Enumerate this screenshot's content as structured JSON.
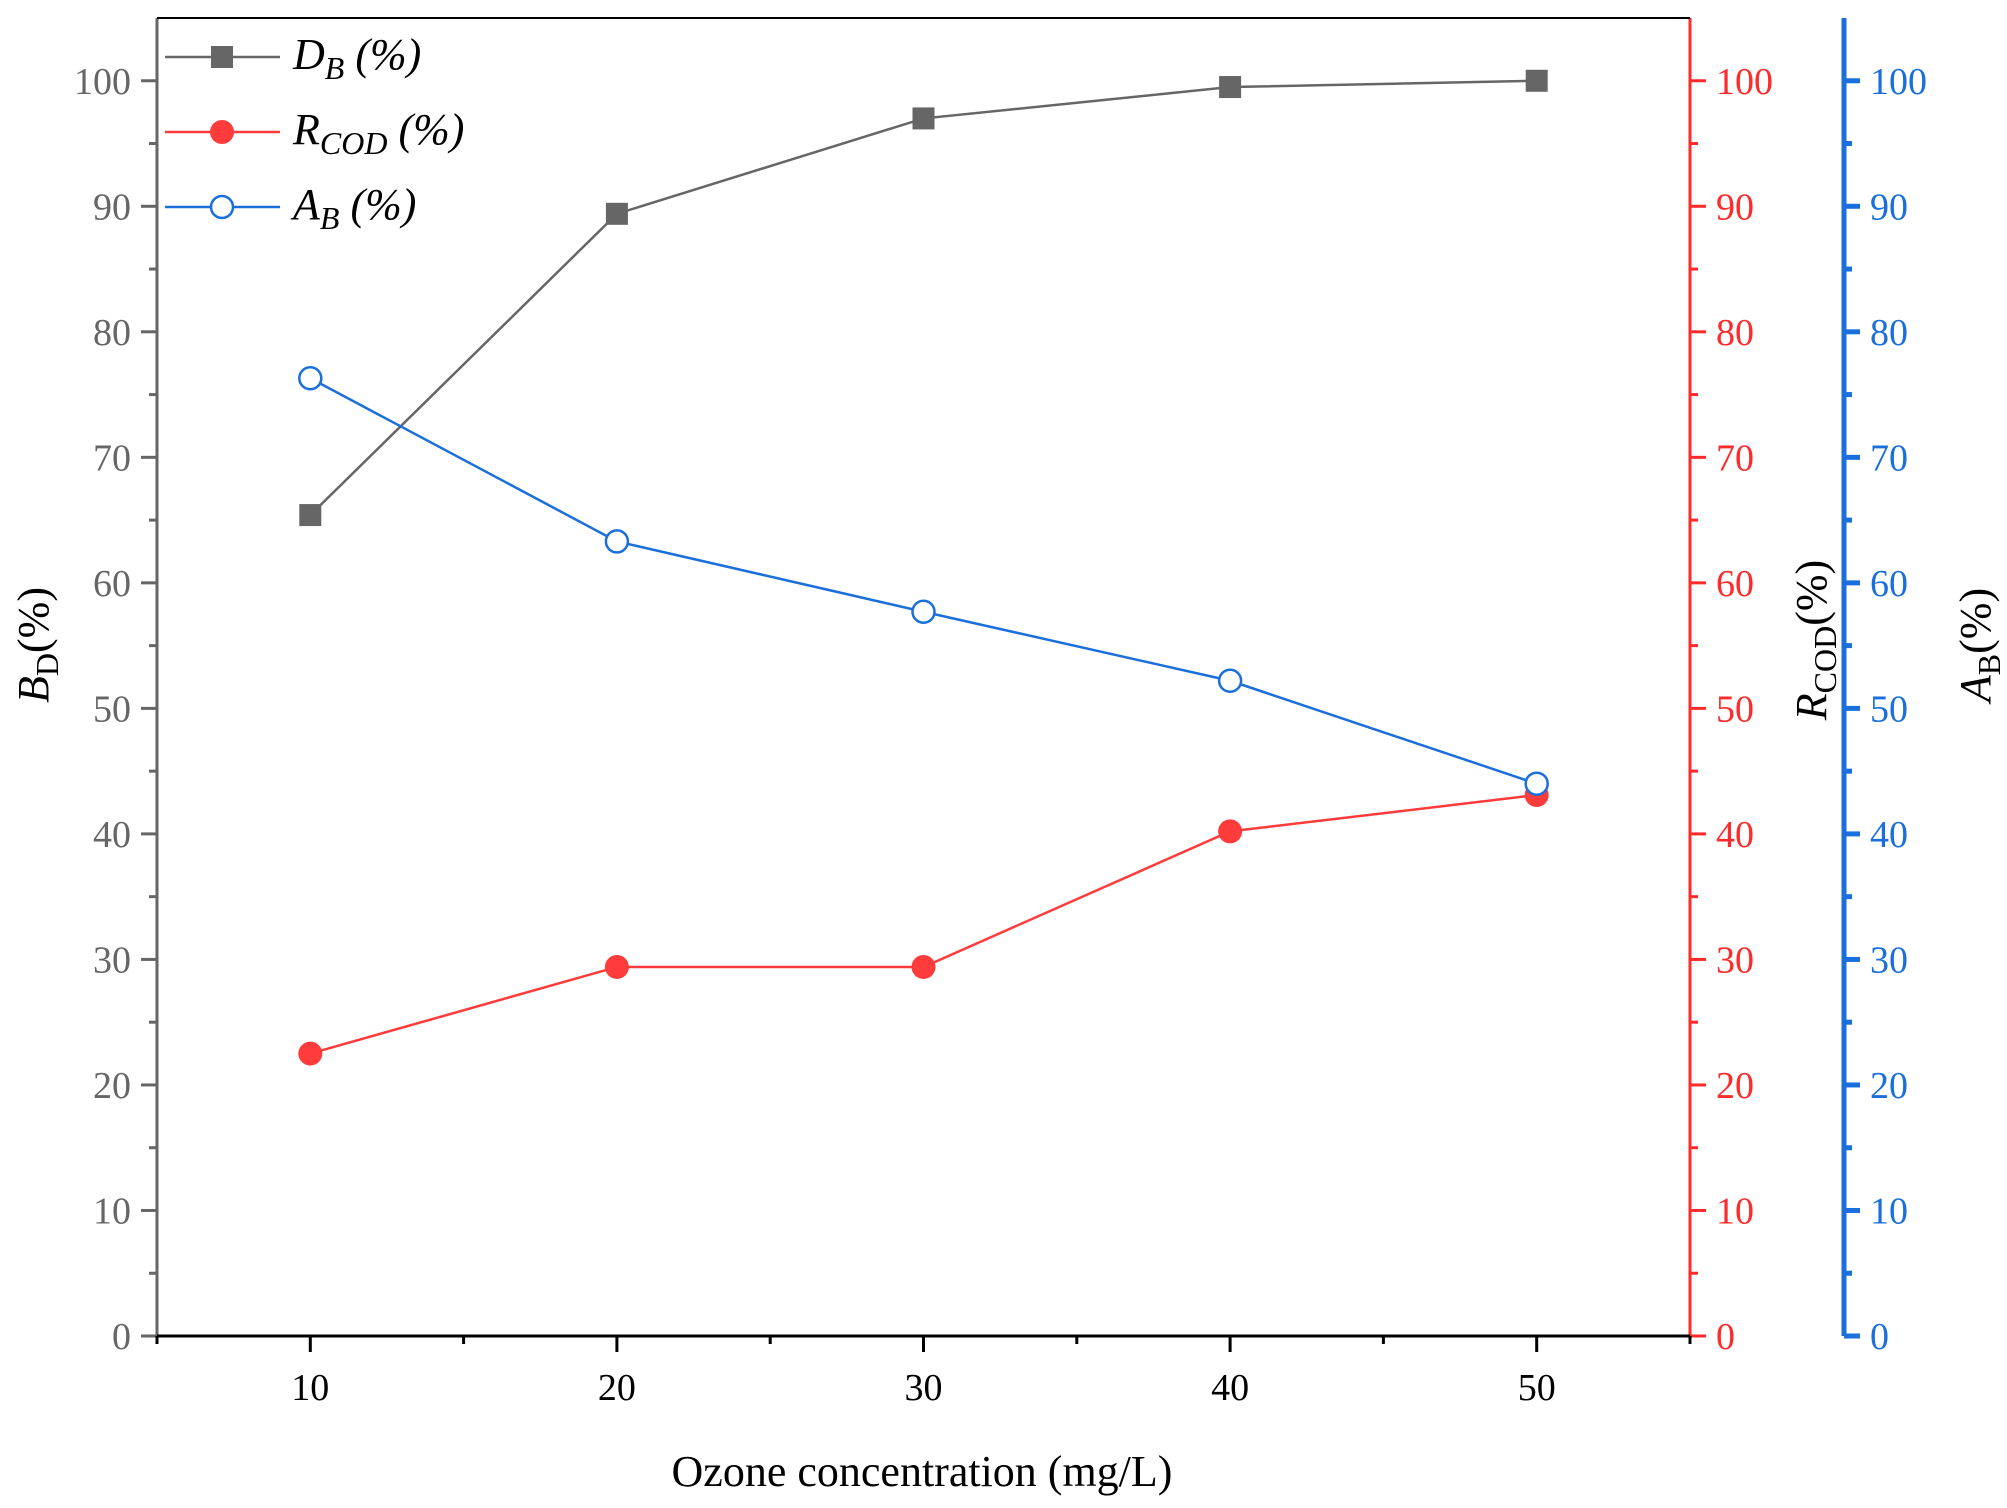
{
  "chart_data": {
    "type": "line",
    "title": "",
    "xlabel": "Ozone concentration (mg/L)",
    "x": [
      10,
      20,
      30,
      40,
      50
    ],
    "xlim": [
      5,
      55
    ],
    "x_ticks": [
      10,
      20,
      30,
      40,
      50
    ],
    "y_ticks": [
      0,
      10,
      20,
      30,
      40,
      50,
      60,
      70,
      80,
      90,
      100
    ],
    "grid": false,
    "legend_position": "top-left",
    "axes": [
      {
        "id": "left",
        "label_main": "B",
        "label_sub": "D",
        "label_suffix": "(%)",
        "ylim": [
          0,
          105
        ],
        "color": "#666666"
      },
      {
        "id": "right1",
        "label_main": "R",
        "label_sub": "COD",
        "label_suffix": "(%)",
        "ylim": [
          0,
          105
        ],
        "color": "#ff2a2a"
      },
      {
        "id": "right2",
        "label_main": "A",
        "label_sub": "B",
        "label_suffix": "(%)",
        "ylim": [
          0,
          105
        ],
        "color": "#1a6fdc"
      }
    ],
    "series": [
      {
        "name": "D_B (%)",
        "legend_main": "D",
        "legend_sub": "B",
        "legend_suffix": " (%)",
        "axis": "left",
        "marker": "filled-square",
        "color": "#666666",
        "values": [
          65.4,
          89.4,
          97.0,
          99.5,
          100.0
        ]
      },
      {
        "name": "R_COD (%)",
        "legend_main": "R",
        "legend_sub": "COD",
        "legend_suffix": " (%)",
        "axis": "right1",
        "marker": "filled-circle",
        "color": "#ff3b3b",
        "values": [
          22.5,
          29.4,
          29.4,
          40.2,
          43.1
        ]
      },
      {
        "name": "A_B (%)",
        "legend_main": "A",
        "legend_sub": "B",
        "legend_suffix": " (%)",
        "axis": "right2",
        "marker": "open-circle",
        "color": "#1a6fdc",
        "values": [
          76.3,
          63.3,
          57.7,
          52.2,
          44.0
        ]
      }
    ]
  }
}
